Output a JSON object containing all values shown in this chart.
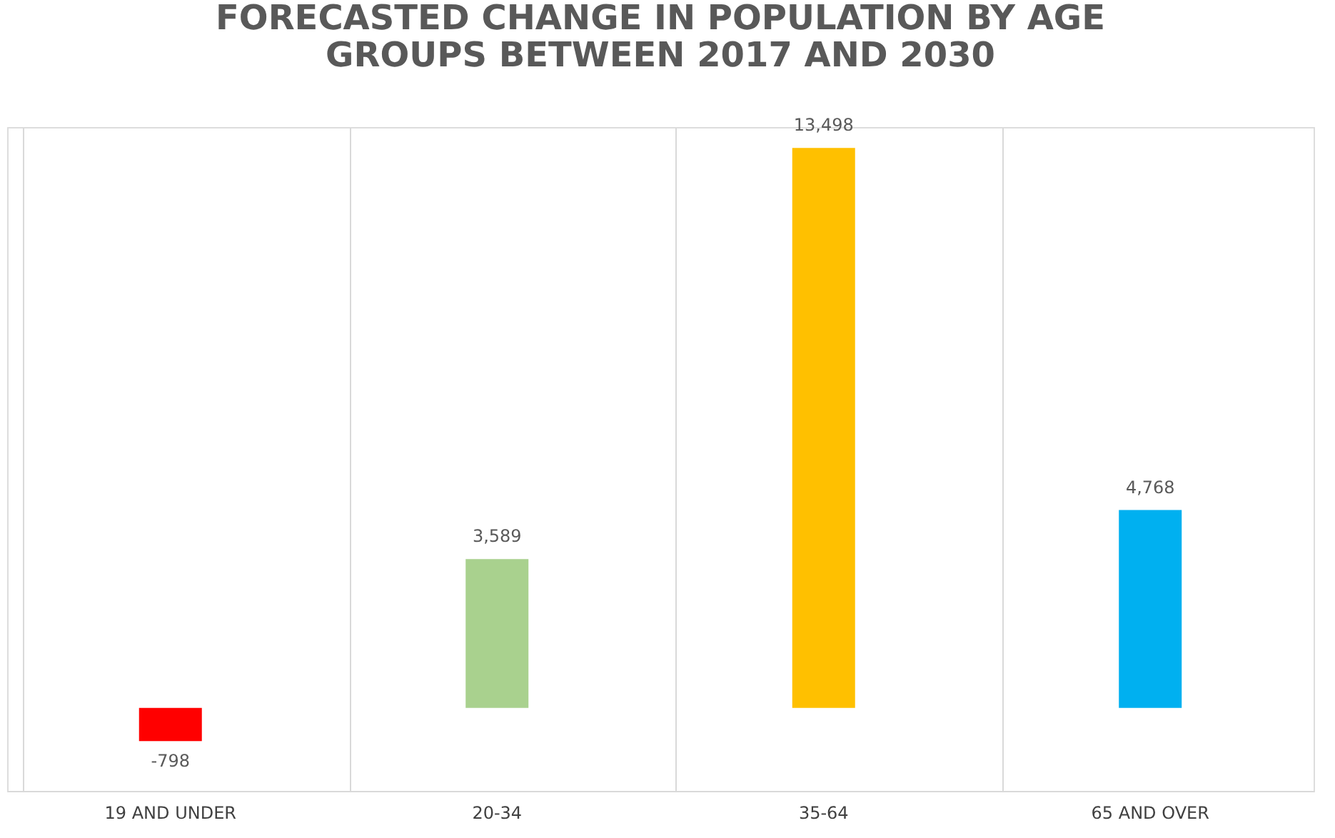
{
  "chart_data": {
    "type": "bar",
    "title": [
      "FORECASTED CHANGE IN POPULATION BY AGE",
      "GROUPS BETWEEN 2017 AND 2030"
    ],
    "categories": [
      "19 AND UNDER",
      "20-34",
      "35-64",
      "65 AND OVER"
    ],
    "values": [
      -798,
      3589,
      13498,
      4768
    ],
    "colors": [
      "#ff0000",
      "#a9d18e",
      "#ffc000",
      "#00b0f0"
    ],
    "value_labels": [
      "-798",
      "3,589",
      "13,498",
      "4,768"
    ],
    "grid": "x",
    "tick_labels": "x"
  }
}
